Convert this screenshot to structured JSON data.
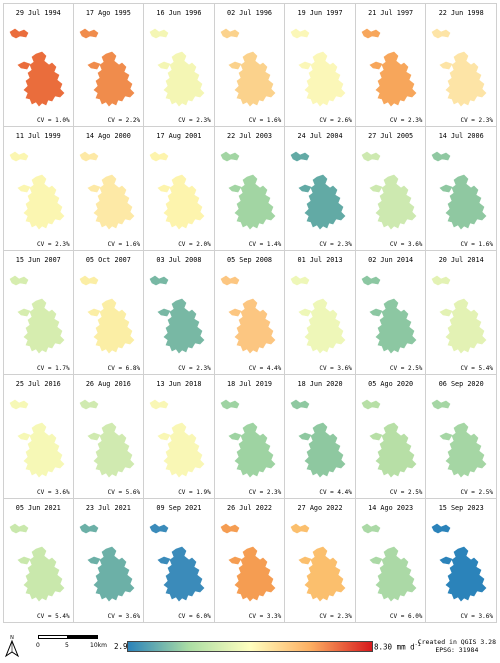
{
  "panels": [
    {
      "date": "29 Jul 1994",
      "cv": "CV = 1.0%",
      "color": "#ea6d3c"
    },
    {
      "date": "17 Ago 1995",
      "cv": "CV = 2.2%",
      "color": "#f08c4c"
    },
    {
      "date": "16 Jun 1996",
      "cv": "CV = 2.3%",
      "color": "#f4f6b4"
    },
    {
      "date": "02 Jul 1996",
      "cv": "CV = 1.6%",
      "color": "#fbd28c"
    },
    {
      "date": "19 Jun 1997",
      "cv": "CV = 2.6%",
      "color": "#fbf7b8"
    },
    {
      "date": "21 Jul 1997",
      "cv": "CV = 2.3%",
      "color": "#f7a65b"
    },
    {
      "date": "22 Jun 1998",
      "cv": "CV = 2.3%",
      "color": "#fde4a6"
    },
    {
      "date": "11 Jul 1999",
      "cv": "CV = 2.3%",
      "color": "#fbf6b1"
    },
    {
      "date": "14 Ago 2000",
      "cv": "CV = 1.6%",
      "color": "#fde9a6"
    },
    {
      "date": "17 Aug 2001",
      "cv": "CV = 2.0%",
      "color": "#fdf4ad"
    },
    {
      "date": "22 Jul 2003",
      "cv": "CV = 1.4%",
      "color": "#a2d5a3"
    },
    {
      "date": "24 Jul 2004",
      "cv": "CV = 2.3%",
      "color": "#62aaa5"
    },
    {
      "date": "27 Jul 2005",
      "cv": "CV = 3.6%",
      "color": "#cde9b0"
    },
    {
      "date": "14 Jul 2006",
      "cv": "CV = 1.6%",
      "color": "#8fc8a1"
    },
    {
      "date": "15 Jun 2007",
      "cv": "CV = 1.7%",
      "color": "#d6edaf"
    },
    {
      "date": "05 Oct 2007",
      "cv": "CV = 6.8%",
      "color": "#fbeea5"
    },
    {
      "date": "03 Jul 2008",
      "cv": "CV = 2.3%",
      "color": "#78b8a4"
    },
    {
      "date": "05 Sep 2008",
      "cv": "CV = 4.4%",
      "color": "#fcc681"
    },
    {
      "date": "01 Jul 2013",
      "cv": "CV = 3.6%",
      "color": "#eef7b8"
    },
    {
      "date": "02 Jun 2014",
      "cv": "CV = 2.5%",
      "color": "#8cc7a2"
    },
    {
      "date": "20 Jul 2014",
      "cv": "CV = 5.4%",
      "color": "#e3f2b4"
    },
    {
      "date": "25 Jul 2016",
      "cv": "CV = 3.6%",
      "color": "#f6f8b6"
    },
    {
      "date": "26 Aug 2016",
      "cv": "CV = 5.6%",
      "color": "#d0eab0"
    },
    {
      "date": "13 Jun 2018",
      "cv": "CV = 1.9%",
      "color": "#f9f7b5"
    },
    {
      "date": "18 Jul 2019",
      "cv": "CV = 2.3%",
      "color": "#9ed3a2"
    },
    {
      "date": "18 Jun 2020",
      "cv": "CV = 4.4%",
      "color": "#8ec8a0"
    },
    {
      "date": "05 Ago 2020",
      "cv": "CV = 2.5%",
      "color": "#b7dfa6"
    },
    {
      "date": "06 Sep 2020",
      "cv": "CV = 2.5%",
      "color": "#a5d6a4"
    },
    {
      "date": "05 Jun 2021",
      "cv": "CV = 5.4%",
      "color": "#c9e8ac"
    },
    {
      "date": "23 Jul 2021",
      "cv": "CV = 3.6%",
      "color": "#6cb0a7"
    },
    {
      "date": "09 Sep 2021",
      "cv": "CV = 6.0%",
      "color": "#3b8bba"
    },
    {
      "date": "26 Jul 2022",
      "cv": "CV = 3.3%",
      "color": "#f59d52"
    },
    {
      "date": "27 Ago 2022",
      "cv": "CV = 2.3%",
      "color": "#fbbf6d"
    },
    {
      "date": "14 Ago 2023",
      "cv": "CV = 6.0%",
      "color": "#abd9a6"
    },
    {
      "date": "15 Sep 2023",
      "cv": "CV = 3.6%",
      "color": "#2b83ba"
    }
  ],
  "legend": {
    "min": "2.90",
    "max": "8.30 mm d",
    "max_exp": "-1",
    "colors": [
      "#2b83ba",
      "#abdda4",
      "#ffffbf",
      "#fdae61",
      "#d7191c"
    ]
  },
  "scalebar": {
    "labels": [
      "0",
      "5",
      "10km"
    ]
  },
  "north": {
    "label": "N",
    "icon": "north-arrow-icon"
  },
  "credit": {
    "line1": "Created in QGIS 3.28",
    "line2": "EPSG: 31984"
  }
}
